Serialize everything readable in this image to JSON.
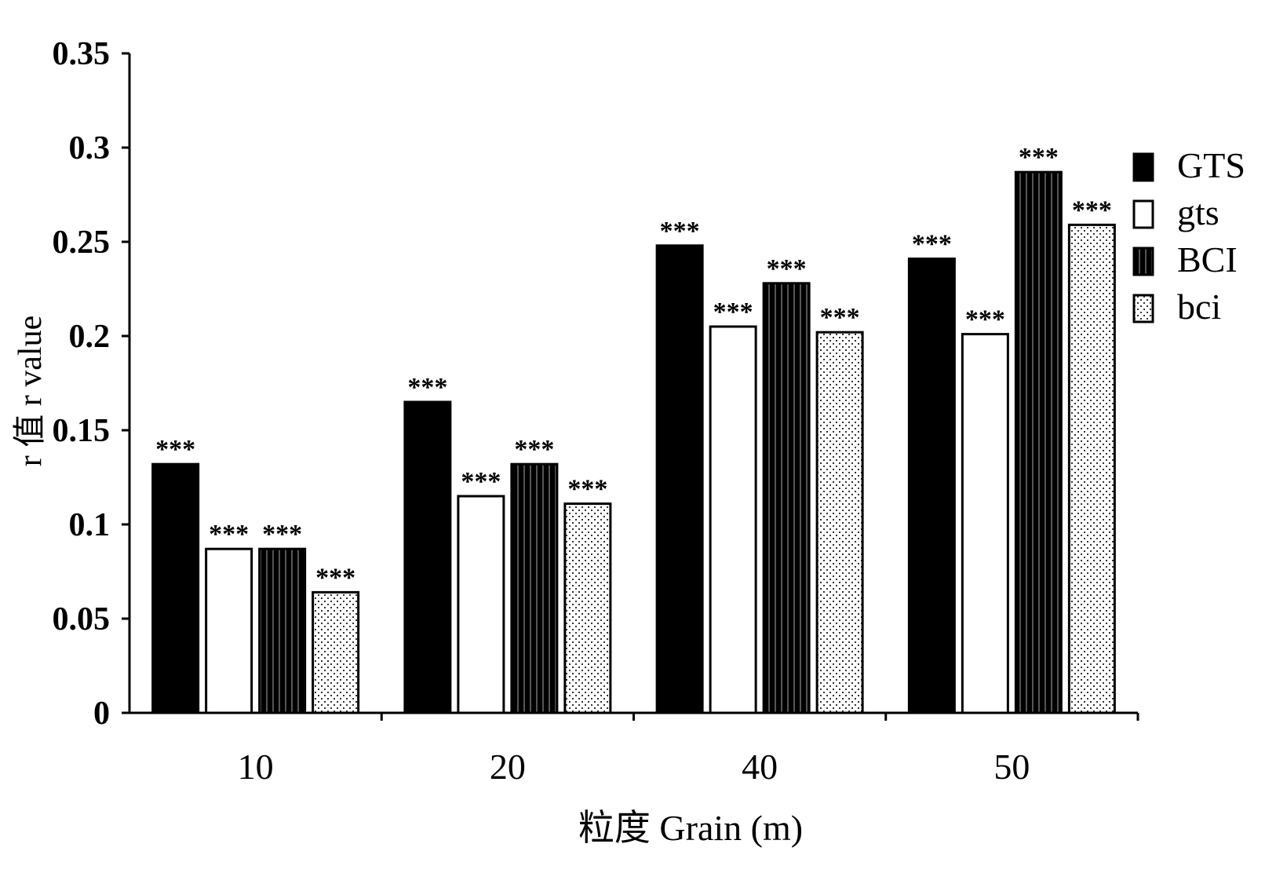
{
  "chart_data": {
    "type": "bar",
    "categories": [
      "10",
      "20",
      "40",
      "50"
    ],
    "series": [
      {
        "name": "GTS",
        "pattern": "solid",
        "values": [
          0.132,
          0.165,
          0.248,
          0.241
        ],
        "labels": [
          "***",
          "***",
          "***",
          "***"
        ]
      },
      {
        "name": "gts",
        "pattern": "hollow",
        "values": [
          0.087,
          0.115,
          0.205,
          0.201
        ],
        "labels": [
          "***",
          "***",
          "***",
          "***"
        ]
      },
      {
        "name": "BCI",
        "pattern": "striped",
        "values": [
          0.087,
          0.132,
          0.228,
          0.287
        ],
        "labels": [
          "***",
          "***",
          "***",
          "***"
        ]
      },
      {
        "name": "bci",
        "pattern": "dotted",
        "values": [
          0.064,
          0.111,
          0.202,
          0.259
        ],
        "labels": [
          "***",
          "***",
          "***",
          "***"
        ]
      }
    ],
    "xlabel": "粒度 Grain (m)",
    "ylabel": "r 值 r value",
    "ylim": [
      0,
      0.35
    ],
    "yticks": [
      "0",
      "0.05",
      "0.1",
      "0.15",
      "0.2",
      "0.25",
      "0.3",
      "0.35"
    ],
    "grid": false,
    "legend_position": "right"
  }
}
